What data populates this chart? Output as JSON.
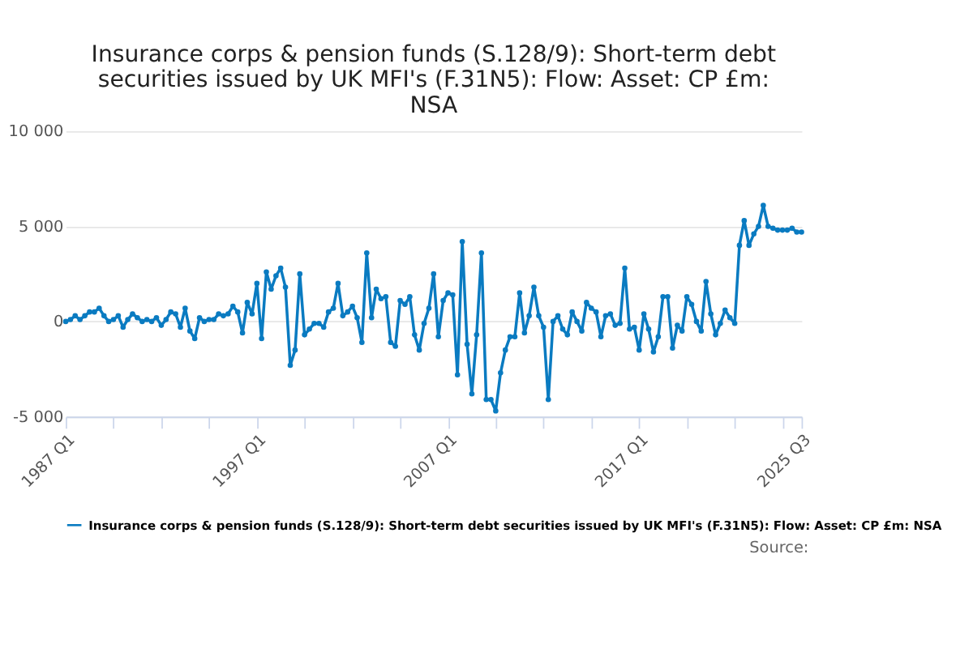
{
  "chart_data": {
    "type": "line",
    "title": "Insurance corps & pension funds (S.128/9): Short-term debt securities issued by UK MFI's (F.31N5): Flow: Asset: CP £m: NSA",
    "x": [
      "1987-01",
      "1987-04",
      "1987-07",
      "1987-10",
      "1988-01",
      "1988-04",
      "1988-07",
      "1988-10",
      "1989-01",
      "1989-04",
      "1989-07",
      "1989-10",
      "1990-01",
      "1990-04",
      "1990-07",
      "1990-10",
      "1991-01",
      "1991-04",
      "1991-07",
      "1991-10",
      "1992-01",
      "1992-04",
      "1992-07",
      "1992-10",
      "1993-01",
      "1993-04",
      "1993-07",
      "1993-10",
      "1994-01",
      "1994-04",
      "1994-07",
      "1994-10",
      "1995-01",
      "1995-04",
      "1995-07",
      "1995-10",
      "1996-01",
      "1996-04",
      "1996-07",
      "1996-10",
      "1997-01",
      "1997-04",
      "1997-07",
      "1997-10",
      "1998-01",
      "1998-04",
      "1998-07",
      "1998-10",
      "1999-01",
      "1999-04",
      "1999-07",
      "1999-10",
      "2000-01",
      "2000-04",
      "2000-07",
      "2000-10",
      "2001-01",
      "2001-04",
      "2001-07",
      "2001-10",
      "2002-01",
      "2002-04",
      "2002-07",
      "2002-10",
      "2003-01",
      "2003-04",
      "2003-07",
      "2003-10",
      "2004-01",
      "2004-04",
      "2004-07",
      "2004-10",
      "2005-01",
      "2005-04",
      "2005-07",
      "2005-10",
      "2006-01",
      "2006-04",
      "2006-07",
      "2006-10",
      "2007-01",
      "2007-04",
      "2007-07",
      "2007-10",
      "2008-01",
      "2008-04",
      "2008-07",
      "2008-10",
      "2009-01",
      "2009-04",
      "2009-07",
      "2009-10",
      "2010-01",
      "2010-04",
      "2010-07",
      "2010-10",
      "2011-01",
      "2011-04",
      "2011-07",
      "2011-10",
      "2012-01",
      "2012-04",
      "2012-07",
      "2012-10",
      "2013-01",
      "2013-04",
      "2013-07",
      "2013-10",
      "2014-01",
      "2014-04",
      "2014-07",
      "2014-10",
      "2015-01",
      "2015-04",
      "2015-07",
      "2015-10",
      "2016-01",
      "2016-04",
      "2016-07",
      "2016-10",
      "2017-01",
      "2017-04",
      "2017-07",
      "2017-10",
      "2018-01",
      "2018-04",
      "2018-07",
      "2018-10",
      "2019-01",
      "2019-04",
      "2019-07",
      "2019-10",
      "2020-01",
      "2020-04",
      "2020-07",
      "2020-10",
      "2021-01",
      "2021-04",
      "2021-07",
      "2021-10",
      "2022-01",
      "2022-04",
      "2022-07",
      "2022-10",
      "2023-01",
      "2023-04",
      "2023-07",
      "2023-10",
      "2024-01",
      "2024-04",
      "2024-07",
      "2024-10",
      "2025-01",
      "2025-04",
      "2025-07"
    ],
    "series": [
      {
        "name": "Insurance corps & pension funds (S.128/9): Short-term debt securities issued by UK MFI's (F.31N5): Flow: Asset: CP £m: NSA",
        "color": "#0a7bc1",
        "values": [
          0,
          100,
          300,
          100,
          300,
          500,
          500,
          700,
          300,
          0,
          100,
          300,
          -300,
          100,
          400,
          200,
          0,
          100,
          0,
          200,
          -200,
          100,
          500,
          400,
          -300,
          700,
          -500,
          -900,
          200,
          0,
          100,
          100,
          400,
          300,
          400,
          800,
          500,
          -600,
          1000,
          400,
          2000,
          -900,
          2600,
          1700,
          2400,
          2800,
          1800,
          -2300,
          -1500,
          2500,
          -700,
          -400,
          -100,
          -100,
          -300,
          500,
          700,
          2000,
          300,
          500,
          800,
          200,
          -1100,
          3600,
          200,
          1700,
          1200,
          1300,
          -1100,
          -1300,
          1100,
          900,
          1300,
          -700,
          -1500,
          -100,
          700,
          2500,
          -800,
          1100,
          1500,
          1400,
          -2800,
          4200,
          -1200,
          -3800,
          -700,
          3600,
          -4100,
          -4100,
          -4700,
          -2700,
          -1500,
          -800,
          -800,
          1500,
          -600,
          300,
          1800,
          300,
          -300,
          -4100,
          0,
          300,
          -400,
          -700,
          500,
          0,
          -500,
          1000,
          700,
          500,
          -800,
          300,
          400,
          -200,
          -100,
          2800,
          -400,
          -300,
          -1500,
          400,
          -400,
          -1600,
          -800,
          1300,
          1300,
          -1400,
          -200,
          -500,
          1300,
          900,
          0,
          -500,
          2100,
          400,
          -700,
          -100,
          600,
          200,
          -100,
          4000,
          5300,
          4000,
          4600,
          5000,
          6100,
          5000,
          4900,
          4800,
          4800,
          4800,
          4900,
          4700,
          4700
        ]
      }
    ],
    "xlim": [
      "1987-01",
      "2025-07"
    ],
    "xticks": [
      {
        "value": "1987-01",
        "label": "1987 Q1"
      },
      {
        "value": "1989-07",
        "label": null
      },
      {
        "value": "1992-01",
        "label": null
      },
      {
        "value": "1994-07",
        "label": null
      },
      {
        "value": "1997-01",
        "label": "1997 Q1"
      },
      {
        "value": "1999-07",
        "label": null
      },
      {
        "value": "2002-01",
        "label": null
      },
      {
        "value": "2004-07",
        "label": null
      },
      {
        "value": "2007-01",
        "label": "2007 Q1"
      },
      {
        "value": "2009-07",
        "label": null
      },
      {
        "value": "2012-01",
        "label": null
      },
      {
        "value": "2014-07",
        "label": null
      },
      {
        "value": "2017-01",
        "label": "2017 Q1"
      },
      {
        "value": "2019-07",
        "label": null
      },
      {
        "value": "2022-01",
        "label": null
      },
      {
        "value": "2024-07",
        "label": null
      },
      {
        "value": "2025-07",
        "label": "2025 Q3"
      }
    ],
    "ylim": [
      -5000,
      10000
    ],
    "yticks": [
      {
        "value": -5000,
        "label": "-5 000"
      },
      {
        "value": 0,
        "label": "0"
      },
      {
        "value": 5000,
        "label": "5 000"
      },
      {
        "value": 10000,
        "label": "10 000"
      }
    ],
    "grid": "y",
    "legend": "bottom",
    "marker": "circle",
    "line_style": "solid",
    "annotations": [
      "Source:"
    ]
  }
}
